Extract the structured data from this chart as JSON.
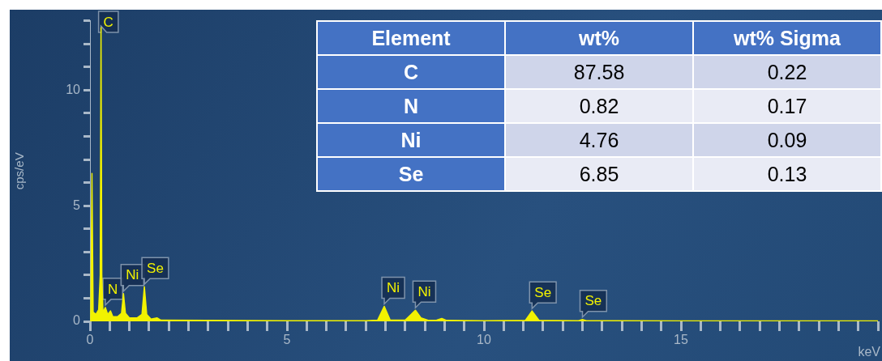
{
  "chart_data": [
    {
      "type": "area",
      "ylabel": "cps/eV",
      "xlabel": "keV",
      "x": [
        0,
        0.02,
        0.05,
        0.08,
        0.15,
        0.22,
        0.26,
        0.28,
        0.3,
        0.33,
        0.39,
        0.45,
        0.52,
        0.58,
        0.7,
        0.8,
        0.85,
        0.9,
        1.0,
        1.2,
        1.32,
        1.38,
        1.44,
        1.55,
        1.7,
        1.8,
        3,
        5,
        7,
        7.3,
        7.47,
        7.62,
        8.0,
        8.15,
        8.26,
        8.4,
        8.6,
        8.8,
        8.93,
        9.05,
        10,
        11.05,
        11.22,
        11.4,
        12.4,
        12.5,
        12.6,
        15,
        20
      ],
      "series": [
        {
          "color": "#f2f200",
          "values": [
            0,
            0.3,
            6.4,
            0.4,
            0.3,
            0.5,
            2,
            12.7,
            2,
            0.4,
            0.6,
            0.3,
            0.45,
            0.2,
            0.2,
            0.35,
            1.2,
            0.35,
            0.15,
            0.15,
            0.3,
            1.5,
            0.3,
            0.1,
            0.15,
            0.05,
            0.04,
            0.03,
            0.03,
            0.05,
            0.65,
            0.05,
            0.05,
            0.3,
            0.48,
            0.15,
            0.04,
            0.05,
            0.12,
            0.04,
            0.03,
            0.04,
            0.45,
            0.04,
            0.03,
            0.08,
            0.03,
            0.02,
            0.02
          ]
        }
      ],
      "xlim": [
        0,
        20
      ],
      "xticks": [
        0,
        {
          "value": 0.5,
          "label": null
        },
        {
          "value": 1,
          "label": null
        },
        {
          "value": 1.5,
          "label": null
        },
        {
          "value": 2,
          "label": null
        },
        {
          "value": 2.5,
          "label": null
        },
        {
          "value": 3,
          "label": null
        },
        {
          "value": 3.5,
          "label": null
        },
        {
          "value": 4,
          "label": null
        },
        {
          "value": 4.5,
          "label": null
        },
        5,
        {
          "value": 5.5,
          "label": null
        },
        {
          "value": 6,
          "label": null
        },
        {
          "value": 6.5,
          "label": null
        },
        {
          "value": 7,
          "label": null
        },
        {
          "value": 7.5,
          "label": null
        },
        {
          "value": 8,
          "label": null
        },
        {
          "value": 8.5,
          "label": null
        },
        {
          "value": 9,
          "label": null
        },
        {
          "value": 9.5,
          "label": null
        },
        10,
        {
          "value": 10.5,
          "label": null
        },
        {
          "value": 11,
          "label": null
        },
        {
          "value": 11.5,
          "label": null
        },
        {
          "value": 12,
          "label": null
        },
        {
          "value": 12.5,
          "label": null
        },
        {
          "value": 13,
          "label": null
        },
        {
          "value": 13.5,
          "label": null
        },
        {
          "value": 14,
          "label": null
        },
        {
          "value": 14.5,
          "label": null
        },
        15,
        {
          "value": 15.5,
          "label": null
        },
        {
          "value": 16,
          "label": null
        },
        {
          "value": 16.5,
          "label": null
        },
        {
          "value": 17,
          "label": null
        },
        {
          "value": 17.5,
          "label": null
        },
        {
          "value": 18,
          "label": null
        },
        {
          "value": 18.5,
          "label": null
        },
        {
          "value": 19,
          "label": null
        },
        {
          "value": 19.5,
          "label": null
        },
        {
          "value": 20,
          "label": null
        }
      ],
      "ylim": [
        0,
        13
      ],
      "yticks": [
        0,
        {
          "value": 1,
          "label": null
        },
        {
          "value": 2,
          "label": null
        },
        {
          "value": 3,
          "label": null
        },
        {
          "value": 4,
          "label": null
        },
        5,
        {
          "value": 6,
          "label": null
        },
        {
          "value": 7,
          "label": null
        },
        {
          "value": 8,
          "label": null
        },
        {
          "value": 9,
          "label": null
        },
        10,
        {
          "value": 11,
          "label": null
        },
        {
          "value": 12,
          "label": null
        },
        {
          "value": 13,
          "label": null
        }
      ],
      "grid": false,
      "legend": false,
      "marker": "none",
      "annotations": [
        {
          "text": "C",
          "x": 0.28,
          "y": 12.7
        },
        {
          "text": "N",
          "x": 0.39,
          "y": 0.6
        },
        {
          "text": "Ni",
          "x": 0.85,
          "y": 1.2
        },
        {
          "text": "Se",
          "x": 1.38,
          "y": 1.5
        },
        {
          "text": "Ni",
          "x": 7.47,
          "y": 0.65
        },
        {
          "text": "Ni",
          "x": 8.26,
          "y": 0.48
        },
        {
          "text": "Se",
          "x": 11.22,
          "y": 0.45
        },
        {
          "text": "Se",
          "x": 12.5,
          "y": 0.08
        }
      ]
    },
    {
      "type": "other",
      "xlabel": "Element",
      "categories": [
        "C",
        "N",
        "Ni",
        "Se"
      ],
      "series": [
        {
          "name": "wt%",
          "colors": [
            "#cfd5ea",
            "#e9ebf5",
            "#cfd5ea",
            "#e9ebf5"
          ],
          "values": [
            87.58,
            0.82,
            4.76,
            6.85
          ]
        },
        {
          "name": "wt% Sigma",
          "colors": [
            "#cfd5ea",
            "#e9ebf5",
            "#cfd5ea",
            "#e9ebf5"
          ],
          "values": [
            0.22,
            0.17,
            0.09,
            0.13
          ]
        }
      ],
      "data_labels": true
    }
  ]
}
